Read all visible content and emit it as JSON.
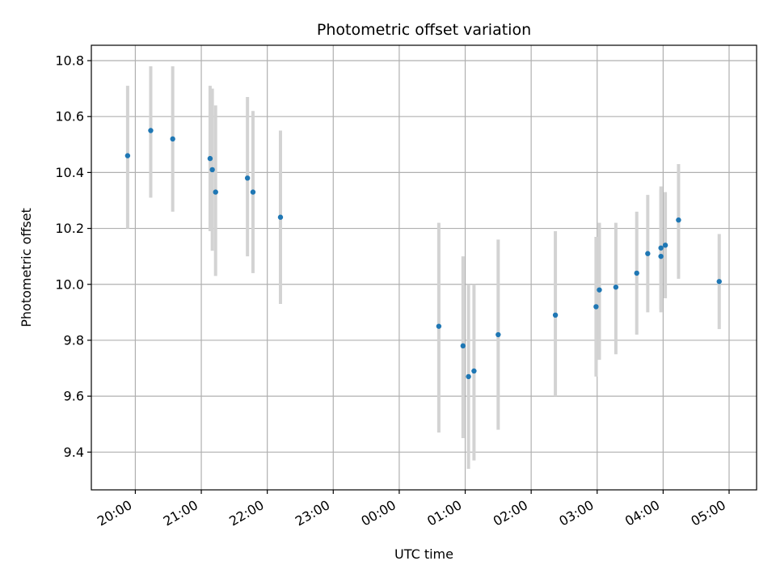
{
  "chart_data": {
    "type": "scatter",
    "title": "Photometric offset variation",
    "xlabel": "UTC time",
    "ylabel": "Photometric offset",
    "x_is_time": true,
    "x_day_offset_note_hidden": false,
    "xlim": [
      "19:20",
      "05:25"
    ],
    "ylim": [
      9.265,
      10.855
    ],
    "grid": true,
    "xticks": [
      "20:00",
      "21:00",
      "22:00",
      "23:00",
      "00:00",
      "01:00",
      "02:00",
      "03:00",
      "04:00",
      "05:00"
    ],
    "yticks": [
      "9.4",
      "9.6",
      "9.8",
      "10.0",
      "10.2",
      "10.4",
      "10.6",
      "10.8"
    ],
    "colors": {
      "points": "#1f77b4",
      "errorbars": "#d3d3d3",
      "grid": "#b0b0b0"
    },
    "series": [
      {
        "points": [
          {
            "x": "19:53",
            "y": 10.46,
            "ylo": 10.2,
            "yhi": 10.71
          },
          {
            "x": "20:14",
            "y": 10.55,
            "ylo": 10.31,
            "yhi": 10.78
          },
          {
            "x": "20:34",
            "y": 10.52,
            "ylo": 10.26,
            "yhi": 10.78
          },
          {
            "x": "21:08",
            "y": 10.45,
            "ylo": 10.19,
            "yhi": 10.71
          },
          {
            "x": "21:10",
            "y": 10.41,
            "ylo": 10.12,
            "yhi": 10.7
          },
          {
            "x": "21:13",
            "y": 10.33,
            "ylo": 10.03,
            "yhi": 10.64
          },
          {
            "x": "21:42",
            "y": 10.38,
            "ylo": 10.1,
            "yhi": 10.67
          },
          {
            "x": "21:47",
            "y": 10.33,
            "ylo": 10.04,
            "yhi": 10.62
          },
          {
            "x": "22:12",
            "y": 10.24,
            "ylo": 9.93,
            "yhi": 10.55
          },
          {
            "x": "00:36",
            "y": 9.85,
            "ylo": 9.47,
            "yhi": 10.22
          },
          {
            "x": "00:58",
            "y": 9.78,
            "ylo": 9.45,
            "yhi": 10.1
          },
          {
            "x": "01:03",
            "y": 9.67,
            "ylo": 9.34,
            "yhi": 10.0
          },
          {
            "x": "01:08",
            "y": 9.69,
            "ylo": 9.37,
            "yhi": 10.0
          },
          {
            "x": "01:30",
            "y": 9.82,
            "ylo": 9.48,
            "yhi": 10.16
          },
          {
            "x": "02:22",
            "y": 9.89,
            "ylo": 9.6,
            "yhi": 10.19
          },
          {
            "x": "02:59",
            "y": 9.92,
            "ylo": 9.67,
            "yhi": 10.17
          },
          {
            "x": "03:02",
            "y": 9.98,
            "ylo": 9.73,
            "yhi": 10.22
          },
          {
            "x": "03:17",
            "y": 9.99,
            "ylo": 9.75,
            "yhi": 10.22
          },
          {
            "x": "03:36",
            "y": 10.04,
            "ylo": 9.82,
            "yhi": 10.26
          },
          {
            "x": "03:46",
            "y": 10.11,
            "ylo": 9.9,
            "yhi": 10.32
          },
          {
            "x": "03:58",
            "y": 10.1,
            "ylo": 9.9,
            "yhi": 10.35
          },
          {
            "x": "03:58",
            "y": 10.13,
            "ylo": 9.91,
            "yhi": 10.34
          },
          {
            "x": "04:02",
            "y": 10.14,
            "ylo": 9.95,
            "yhi": 10.33
          },
          {
            "x": "04:14",
            "y": 10.23,
            "ylo": 10.02,
            "yhi": 10.43
          },
          {
            "x": "04:51",
            "y": 10.01,
            "ylo": 9.84,
            "yhi": 10.18
          }
        ]
      }
    ]
  }
}
